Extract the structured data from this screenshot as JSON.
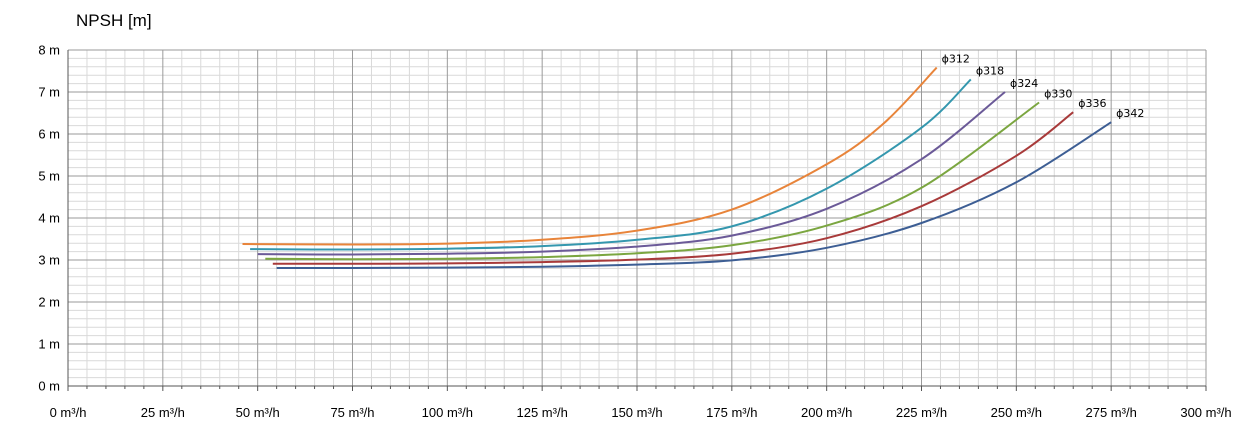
{
  "chart_data": {
    "type": "line",
    "title": "",
    "ylabel": "NPSH [m]",
    "xlabel": "",
    "xlim": [
      0,
      300
    ],
    "ylim": [
      0,
      8
    ],
    "x_ticks": [
      {
        "value": 0,
        "label": "0 m³/h"
      },
      {
        "value": 25,
        "label": "25 m³/h"
      },
      {
        "value": 50,
        "label": "50 m³/h"
      },
      {
        "value": 75,
        "label": "75 m³/h"
      },
      {
        "value": 100,
        "label": "100 m³/h"
      },
      {
        "value": 125,
        "label": "125 m³/h"
      },
      {
        "value": 150,
        "label": "150 m³/h"
      },
      {
        "value": 175,
        "label": "175 m³/h"
      },
      {
        "value": 200,
        "label": "200 m³/h"
      },
      {
        "value": 225,
        "label": "225 m³/h"
      },
      {
        "value": 250,
        "label": "250 m³/h"
      },
      {
        "value": 275,
        "label": "275 m³/h"
      },
      {
        "value": 300,
        "label": "300 m³/h"
      }
    ],
    "y_ticks": [
      {
        "value": 0,
        "label": "0 m"
      },
      {
        "value": 1,
        "label": "1 m"
      },
      {
        "value": 2,
        "label": "2 m"
      },
      {
        "value": 3,
        "label": "3 m"
      },
      {
        "value": 4,
        "label": "4 m"
      },
      {
        "value": 5,
        "label": "5 m"
      },
      {
        "value": 6,
        "label": "6 m"
      },
      {
        "value": 7,
        "label": "7 m"
      },
      {
        "value": 8,
        "label": "8 m"
      }
    ],
    "grid": true,
    "minor_grid": true,
    "series": [
      {
        "name": "ϕ312",
        "color": "#E8843A",
        "x": [
          46,
          75,
          100,
          125,
          150,
          175,
          200,
          215,
          229
        ],
        "y": [
          3.38,
          3.37,
          3.39,
          3.48,
          3.7,
          4.2,
          5.28,
          6.25,
          7.58
        ]
      },
      {
        "name": "ϕ318",
        "color": "#3497AE",
        "x": [
          48,
          75,
          100,
          125,
          150,
          175,
          200,
          225,
          238
        ],
        "y": [
          3.26,
          3.25,
          3.27,
          3.33,
          3.48,
          3.8,
          4.7,
          6.15,
          7.3
        ]
      },
      {
        "name": "ϕ324",
        "color": "#6B5A98",
        "x": [
          50,
          75,
          100,
          125,
          150,
          175,
          200,
          225,
          247
        ],
        "y": [
          3.14,
          3.13,
          3.15,
          3.2,
          3.32,
          3.58,
          4.22,
          5.4,
          7.0
        ]
      },
      {
        "name": "ϕ330",
        "color": "#7BA640",
        "x": [
          52,
          75,
          100,
          125,
          150,
          175,
          200,
          225,
          256
        ],
        "y": [
          3.03,
          3.02,
          3.03,
          3.07,
          3.16,
          3.35,
          3.82,
          4.72,
          6.75
        ]
      },
      {
        "name": "ϕ336",
        "color": "#A83A3A",
        "x": [
          54,
          75,
          100,
          125,
          150,
          175,
          200,
          225,
          250,
          265
        ],
        "y": [
          2.91,
          2.91,
          2.92,
          2.95,
          3.01,
          3.15,
          3.52,
          4.28,
          5.48,
          6.52
        ]
      },
      {
        "name": "ϕ342",
        "color": "#3D5E94",
        "x": [
          55,
          75,
          100,
          125,
          150,
          175,
          200,
          225,
          250,
          275
        ],
        "y": [
          2.81,
          2.81,
          2.82,
          2.84,
          2.89,
          2.99,
          3.29,
          3.88,
          4.85,
          6.28
        ]
      }
    ],
    "gridColor": "#9a9a9a",
    "minorGridColor": "#d9d9d9"
  }
}
